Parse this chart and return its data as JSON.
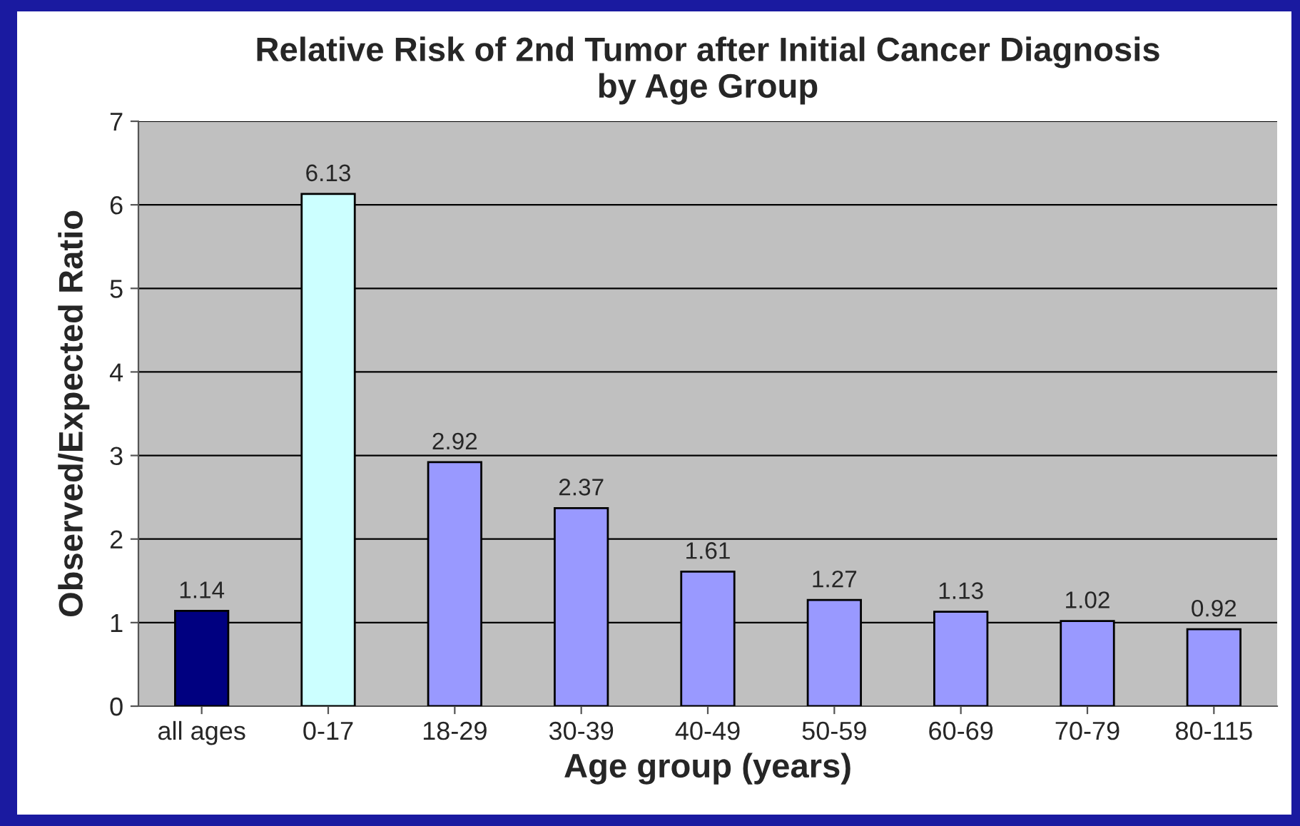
{
  "chart_data": {
    "type": "bar",
    "title": "Relative Risk of 2nd Tumor after Initial Cancer Diagnosis\nby Age Group",
    "xlabel": "Age group (years)",
    "ylabel": "Observed/Expected Ratio",
    "categories": [
      "all ages",
      "0-17",
      "18-29",
      "30-39",
      "40-49",
      "50-59",
      "60-69",
      "70-79",
      "80-115"
    ],
    "values": [
      1.14,
      6.13,
      2.92,
      2.37,
      1.61,
      1.27,
      1.13,
      1.02,
      0.92
    ],
    "colors": [
      "#000080",
      "#ccffff",
      "#9999ff",
      "#9999ff",
      "#9999ff",
      "#9999ff",
      "#9999ff",
      "#9999ff",
      "#9999ff"
    ],
    "ylim": [
      0,
      7
    ],
    "yticks": [
      0,
      1,
      2,
      3,
      4,
      5,
      6,
      7
    ],
    "grid": "y",
    "data_labels": true,
    "legend": false
  }
}
